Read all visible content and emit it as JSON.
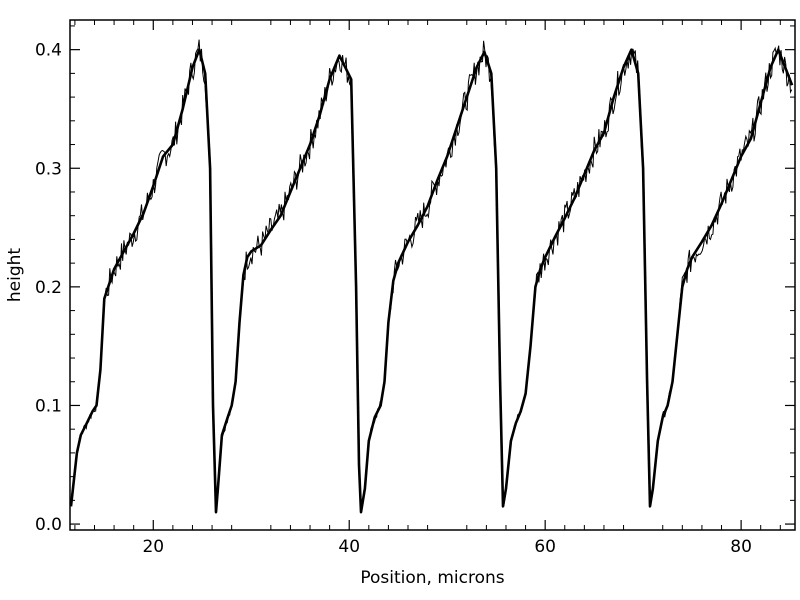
{
  "chart_data": {
    "type": "line",
    "title": "",
    "xlabel": "Position, microns",
    "ylabel": "height",
    "xlim": [
      11.5,
      85.5
    ],
    "ylim": [
      -0.005,
      0.425
    ],
    "x_ticks": [
      20,
      40,
      60,
      80
    ],
    "x_tick_labels": [
      "20",
      "40",
      "60",
      "80"
    ],
    "y_ticks": [
      0.0,
      0.1,
      0.2,
      0.3,
      0.4
    ],
    "y_tick_labels": [
      "0.0",
      "0.1",
      "0.2",
      "0.3",
      "0.4"
    ],
    "grid": false,
    "legend": "none",
    "series": [
      {
        "style": "solid",
        "x": [
          11.6,
          12.2,
          12.6,
          13.2,
          13.8,
          14.2,
          14.6,
          15.0,
          16.0,
          17.0,
          18.0,
          19.0,
          20.0,
          21.0,
          22.0,
          23.0,
          24.0,
          24.7,
          25.3,
          25.8,
          26.1,
          26.4,
          26.6,
          27.0,
          27.6,
          28.0,
          28.4,
          28.8,
          29.2,
          29.6,
          30.0,
          31.0,
          32.0,
          33.0,
          34.0,
          35.0,
          36.0,
          37.0,
          38.0,
          39.0,
          39.6,
          40.2,
          40.7,
          41.0,
          41.2,
          41.6,
          42.0,
          42.6,
          43.2,
          43.6,
          44.0,
          44.5,
          45.0,
          46.0,
          47.0,
          48.0,
          49.0,
          50.0,
          51.0,
          52.0,
          53.0,
          53.8,
          54.5,
          55.0,
          55.4,
          55.7,
          56.0,
          56.5,
          57.0,
          57.5,
          58.0,
          58.5,
          59.0,
          59.5,
          60.0,
          61.0,
          62.0,
          63.0,
          64.0,
          65.0,
          66.0,
          67.0,
          68.0,
          68.8,
          69.5,
          70.0,
          70.4,
          70.7,
          71.0,
          71.5,
          72.0,
          72.5,
          73.0,
          73.5,
          74.0,
          74.5,
          75.0,
          76.0,
          77.0,
          78.0,
          79.0,
          80.0,
          81.0,
          82.0,
          83.0,
          83.8,
          84.5,
          85.2
        ],
        "values": [
          0.015,
          0.06,
          0.075,
          0.085,
          0.095,
          0.1,
          0.13,
          0.19,
          0.215,
          0.23,
          0.245,
          0.262,
          0.285,
          0.31,
          0.32,
          0.35,
          0.385,
          0.4,
          0.38,
          0.3,
          0.1,
          0.01,
          0.03,
          0.075,
          0.09,
          0.1,
          0.12,
          0.17,
          0.21,
          0.225,
          0.23,
          0.235,
          0.248,
          0.26,
          0.28,
          0.3,
          0.32,
          0.345,
          0.375,
          0.395,
          0.385,
          0.375,
          0.2,
          0.05,
          0.01,
          0.03,
          0.07,
          0.09,
          0.1,
          0.12,
          0.17,
          0.205,
          0.22,
          0.238,
          0.252,
          0.268,
          0.29,
          0.31,
          0.335,
          0.36,
          0.385,
          0.398,
          0.38,
          0.3,
          0.12,
          0.015,
          0.03,
          0.07,
          0.085,
          0.095,
          0.11,
          0.15,
          0.2,
          0.215,
          0.225,
          0.242,
          0.258,
          0.275,
          0.295,
          0.315,
          0.33,
          0.36,
          0.385,
          0.4,
          0.38,
          0.3,
          0.12,
          0.015,
          0.03,
          0.07,
          0.09,
          0.1,
          0.12,
          0.16,
          0.2,
          0.215,
          0.225,
          0.238,
          0.252,
          0.27,
          0.29,
          0.31,
          0.325,
          0.355,
          0.385,
          0.4,
          0.385,
          0.37
        ]
      }
    ]
  }
}
